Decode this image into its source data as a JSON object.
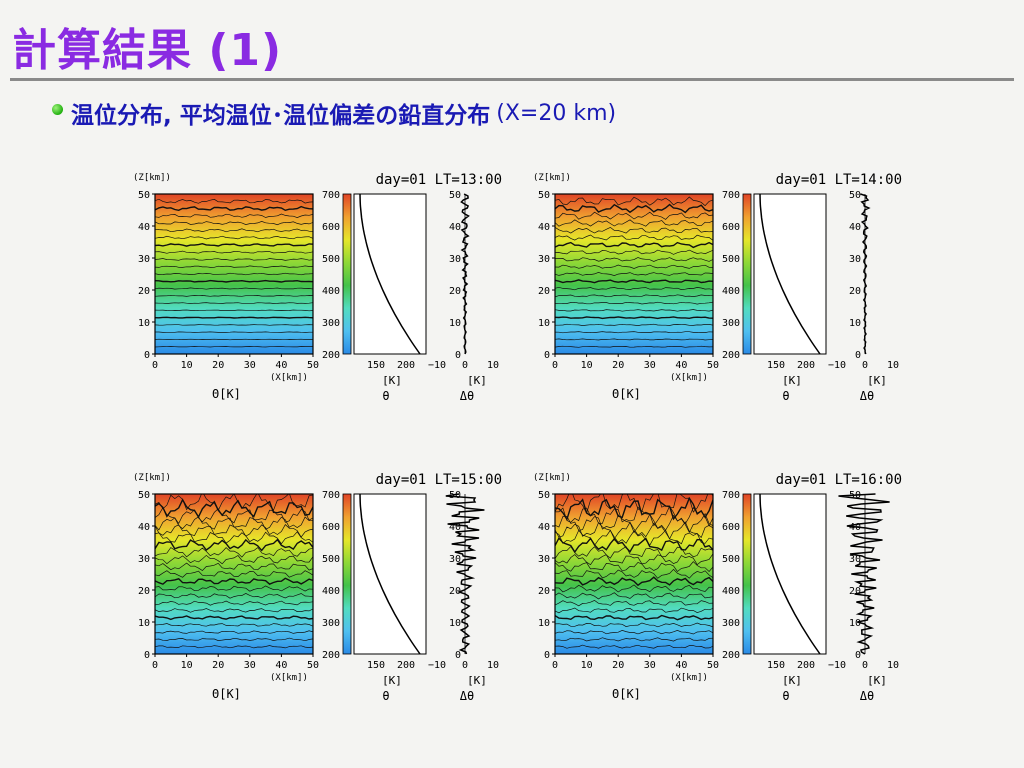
{
  "slide": {
    "title": "計算結果 (1)",
    "bullet_main": "温位分布, 平均温位･温位偏差の鉛直分布",
    "bullet_sub": "(X=20 km)"
  },
  "panel_labels": {
    "z_axis": "(Z[km])",
    "x_axis": "(X[km])",
    "main_label": "Θ[K]",
    "unit": "[K]",
    "theta": "θ",
    "dtheta": "Δθ"
  },
  "panels": [
    {
      "id": "p1",
      "header": "day=01  LT=13:00"
    },
    {
      "id": "p2",
      "header": "day=01  LT=14:00"
    },
    {
      "id": "p3",
      "header": "day=01  LT=15:00"
    },
    {
      "id": "p4",
      "header": "day=01  LT=16:00"
    }
  ],
  "axis_ticks": {
    "z": [
      "0",
      "10",
      "20",
      "30",
      "40",
      "50"
    ],
    "x": [
      "0",
      "10",
      "20",
      "30",
      "40",
      "50"
    ],
    "colorbar": [
      "200",
      "300",
      "400",
      "500",
      "600",
      "700"
    ],
    "mean_theta": [
      "150",
      "200"
    ],
    "deviation": [
      "−10",
      "0",
      "10"
    ]
  },
  "colors": {
    "title": "#8a2be2",
    "text": "#1a1ab4",
    "bullet": "#22b010",
    "colormap": [
      "#2a8ae6",
      "#4fc0f0",
      "#52dcc0",
      "#44c24a",
      "#8ed836",
      "#e6e62a",
      "#f0a030",
      "#e04426"
    ]
  }
}
